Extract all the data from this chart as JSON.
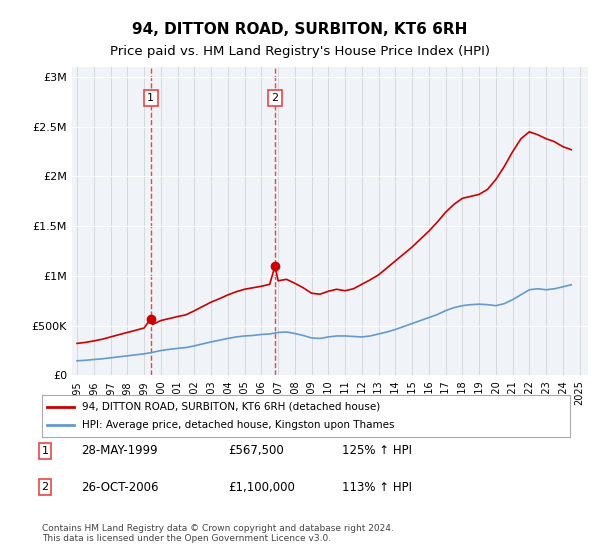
{
  "title": "94, DITTON ROAD, SURBITON, KT6 6RH",
  "subtitle": "Price paid vs. HM Land Registry's House Price Index (HPI)",
  "title_fontsize": 11,
  "subtitle_fontsize": 9.5,
  "ylabel_ticks": [
    "£0",
    "£500K",
    "£1M",
    "£1.5M",
    "£2M",
    "£2.5M",
    "£3M"
  ],
  "ytick_vals": [
    0,
    500000,
    1000000,
    1500000,
    2000000,
    2500000,
    3000000
  ],
  "ylim": [
    0,
    3100000
  ],
  "xlim_start": 1995.0,
  "xlim_end": 2025.5,
  "sale1_x": 1999.4,
  "sale1_y": 567500,
  "sale2_x": 2006.82,
  "sale2_y": 1100000,
  "sale1_label": "1",
  "sale2_label": "2",
  "line_color_red": "#cc0000",
  "line_color_blue": "#6699cc",
  "vline_color": "#ee4444",
  "background_color": "#f0f4f8",
  "legend_line1": "94, DITTON ROAD, SURBITON, KT6 6RH (detached house)",
  "legend_line2": "HPI: Average price, detached house, Kingston upon Thames",
  "table_row1": [
    "1",
    "28-MAY-1999",
    "£567,500",
    "125% ↑ HPI"
  ],
  "table_row2": [
    "2",
    "26-OCT-2006",
    "£1,100,000",
    "113% ↑ HPI"
  ],
  "footnote": "Contains HM Land Registry data © Crown copyright and database right 2024.\nThis data is licensed under the Open Government Licence v3.0.",
  "hpi_years": [
    1995,
    1995.5,
    1996,
    1996.5,
    1997,
    1997.5,
    1998,
    1998.5,
    1999,
    1999.5,
    2000,
    2000.5,
    2001,
    2001.5,
    2002,
    2002.5,
    2003,
    2003.5,
    2004,
    2004.5,
    2005,
    2005.5,
    2006,
    2006.5,
    2007,
    2007.5,
    2008,
    2008.5,
    2009,
    2009.5,
    2010,
    2010.5,
    2011,
    2011.5,
    2012,
    2012.5,
    2013,
    2013.5,
    2014,
    2014.5,
    2015,
    2015.5,
    2016,
    2016.5,
    2017,
    2017.5,
    2018,
    2018.5,
    2019,
    2019.5,
    2020,
    2020.5,
    2021,
    2021.5,
    2022,
    2022.5,
    2023,
    2023.5,
    2024,
    2024.5
  ],
  "hpi_vals": [
    145000,
    150000,
    158000,
    165000,
    175000,
    185000,
    195000,
    205000,
    215000,
    230000,
    248000,
    260000,
    270000,
    278000,
    295000,
    315000,
    335000,
    352000,
    370000,
    385000,
    395000,
    400000,
    410000,
    415000,
    430000,
    435000,
    420000,
    400000,
    375000,
    370000,
    385000,
    395000,
    395000,
    390000,
    385000,
    395000,
    415000,
    435000,
    460000,
    490000,
    520000,
    550000,
    580000,
    610000,
    650000,
    680000,
    700000,
    710000,
    715000,
    710000,
    700000,
    720000,
    760000,
    810000,
    860000,
    870000,
    860000,
    870000,
    890000,
    910000
  ],
  "red_years": [
    1995,
    1995.5,
    1996,
    1996.5,
    1997,
    1997.5,
    1998,
    1998.5,
    1999,
    1999.4,
    1999.5,
    2000,
    2000.5,
    2001,
    2001.5,
    2002,
    2002.5,
    2003,
    2003.5,
    2004,
    2004.5,
    2005,
    2005.5,
    2006,
    2006.5,
    2006.82,
    2007,
    2007.5,
    2008,
    2008.5,
    2009,
    2009.5,
    2010,
    2010.5,
    2011,
    2011.5,
    2012,
    2012.5,
    2013,
    2013.5,
    2014,
    2014.5,
    2015,
    2015.5,
    2016,
    2016.5,
    2017,
    2017.5,
    2018,
    2018.5,
    2019,
    2019.5,
    2020,
    2020.5,
    2021,
    2021.5,
    2022,
    2022.5,
    2023,
    2023.5,
    2024,
    2024.5
  ],
  "red_vals": [
    320000,
    330000,
    345000,
    362000,
    385000,
    408000,
    430000,
    452000,
    475000,
    567500,
    510000,
    550000,
    570000,
    590000,
    608000,
    648000,
    692000,
    735000,
    770000,
    808000,
    840000,
    865000,
    880000,
    895000,
    915000,
    1100000,
    950000,
    965000,
    925000,
    880000,
    825000,
    815000,
    845000,
    865000,
    850000,
    870000,
    915000,
    960000,
    1010000,
    1080000,
    1150000,
    1220000,
    1290000,
    1370000,
    1450000,
    1540000,
    1640000,
    1720000,
    1780000,
    1800000,
    1820000,
    1870000,
    1970000,
    2100000,
    2250000,
    2380000,
    2450000,
    2420000,
    2380000,
    2350000,
    2300000,
    2270000
  ]
}
